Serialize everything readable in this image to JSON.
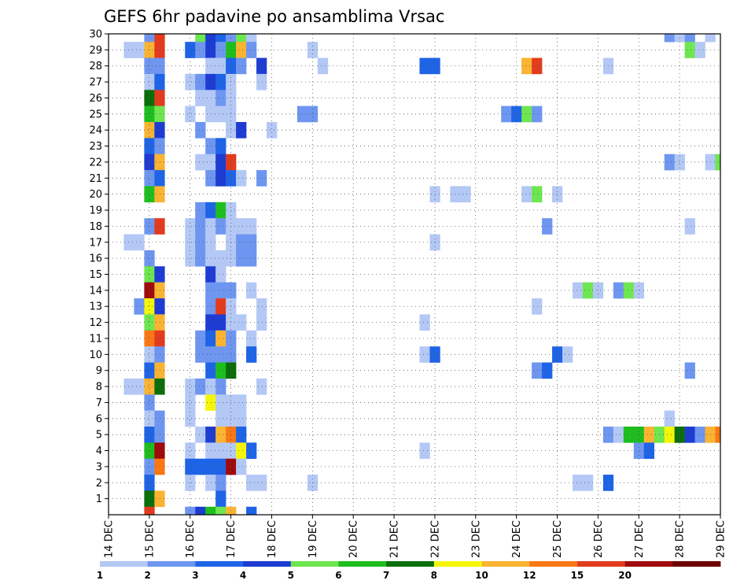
{
  "chart_data": {
    "type": "heatmap",
    "title": "GEFS 6hr padavine po ansamblima Vrsac",
    "xlabel": "",
    "ylabel": "",
    "x_unit": "6-hour step (index 0 = 14 DEC 00Z)",
    "x_tick_labels": [
      "14 DEC",
      "15 DEC",
      "16 DEC",
      "17 DEC",
      "18 DEC",
      "19 DEC",
      "20 DEC",
      "21 DEC",
      "22 DEC",
      "23 DEC",
      "24 DEC",
      "25 DEC",
      "26 DEC",
      "27 DEC",
      "28 DEC",
      "29 DEC"
    ],
    "xlim": [
      0,
      60
    ],
    "y_ticks": [
      1,
      2,
      3,
      4,
      5,
      6,
      7,
      8,
      9,
      10,
      11,
      12,
      13,
      14,
      15,
      16,
      17,
      18,
      19,
      20,
      21,
      22,
      23,
      24,
      25,
      26,
      27,
      28,
      29,
      30
    ],
    "ylim": [
      0,
      30
    ],
    "grid": true,
    "legend": "colorbar-bottom",
    "colorbar": {
      "labels": [
        "1",
        "2",
        "3",
        "4",
        "5",
        "6",
        "7",
        "8",
        "10",
        "12",
        "15",
        "20"
      ],
      "colors": [
        "#b4c8f5",
        "#6e96f0",
        "#1e64e6",
        "#1e3cd2",
        "#6ee650",
        "#1ebe1e",
        "#0a6e0a",
        "#f5f50a",
        "#fab432",
        "#fa7814",
        "#e13c1e",
        "#a00a0a",
        "#6e0000"
      ]
    },
    "cells": [
      [
        30,
        4,
        2
      ],
      [
        30,
        5,
        11
      ],
      [
        30,
        9,
        5
      ],
      [
        30,
        10,
        4
      ],
      [
        30,
        11,
        3
      ],
      [
        30,
        12,
        2
      ],
      [
        30,
        13,
        5
      ],
      [
        30,
        14,
        1
      ],
      [
        30,
        55,
        2
      ],
      [
        30,
        56,
        1
      ],
      [
        30,
        57,
        2
      ],
      [
        30,
        59,
        1
      ],
      [
        29,
        2,
        1
      ],
      [
        29,
        3,
        1
      ],
      [
        29,
        4,
        9
      ],
      [
        29,
        5,
        11
      ],
      [
        29,
        8,
        3
      ],
      [
        29,
        9,
        2
      ],
      [
        29,
        10,
        4
      ],
      [
        29,
        11,
        2
      ],
      [
        29,
        12,
        6
      ],
      [
        29,
        13,
        9
      ],
      [
        29,
        14,
        2
      ],
      [
        29,
        20,
        1
      ],
      [
        29,
        57,
        5
      ],
      [
        29,
        58,
        1
      ],
      [
        28,
        4,
        2
      ],
      [
        28,
        5,
        2
      ],
      [
        28,
        10,
        1
      ],
      [
        28,
        11,
        1
      ],
      [
        28,
        12,
        3
      ],
      [
        28,
        13,
        2
      ],
      [
        28,
        15,
        4
      ],
      [
        28,
        21,
        1
      ],
      [
        28,
        31,
        3
      ],
      [
        28,
        32,
        3
      ],
      [
        28,
        41,
        9
      ],
      [
        28,
        42,
        11
      ],
      [
        28,
        49,
        1
      ],
      [
        27,
        4,
        1
      ],
      [
        27,
        5,
        3
      ],
      [
        27,
        8,
        1
      ],
      [
        27,
        9,
        2
      ],
      [
        27,
        10,
        4
      ],
      [
        27,
        11,
        3
      ],
      [
        27,
        12,
        1
      ],
      [
        27,
        15,
        1
      ],
      [
        26,
        4,
        7
      ],
      [
        26,
        5,
        11
      ],
      [
        26,
        9,
        1
      ],
      [
        26,
        10,
        1
      ],
      [
        26,
        11,
        2
      ],
      [
        26,
        12,
        1
      ],
      [
        25,
        4,
        6
      ],
      [
        25,
        5,
        5
      ],
      [
        25,
        8,
        1
      ],
      [
        25,
        10,
        1
      ],
      [
        25,
        11,
        1
      ],
      [
        25,
        12,
        1
      ],
      [
        25,
        19,
        2
      ],
      [
        25,
        20,
        2
      ],
      [
        25,
        39,
        2
      ],
      [
        25,
        40,
        3
      ],
      [
        25,
        41,
        5
      ],
      [
        25,
        42,
        2
      ],
      [
        24,
        4,
        9
      ],
      [
        24,
        5,
        4
      ],
      [
        24,
        9,
        2
      ],
      [
        24,
        12,
        1
      ],
      [
        24,
        13,
        4
      ],
      [
        24,
        16,
        1
      ],
      [
        23,
        4,
        3
      ],
      [
        23,
        5,
        2
      ],
      [
        23,
        10,
        2
      ],
      [
        23,
        11,
        3
      ],
      [
        22,
        4,
        4
      ],
      [
        22,
        5,
        9
      ],
      [
        22,
        9,
        1
      ],
      [
        22,
        10,
        1
      ],
      [
        22,
        11,
        4
      ],
      [
        22,
        12,
        11
      ],
      [
        22,
        55,
        2
      ],
      [
        22,
        56,
        1
      ],
      [
        22,
        59,
        1
      ],
      [
        22,
        60,
        5
      ],
      [
        21,
        4,
        2
      ],
      [
        21,
        5,
        3
      ],
      [
        21,
        10,
        2
      ],
      [
        21,
        11,
        4
      ],
      [
        21,
        12,
        3
      ],
      [
        21,
        13,
        1
      ],
      [
        21,
        15,
        2
      ],
      [
        20,
        4,
        6
      ],
      [
        20,
        5,
        9
      ],
      [
        20,
        32,
        1
      ],
      [
        20,
        34,
        1
      ],
      [
        20,
        35,
        1
      ],
      [
        20,
        41,
        1
      ],
      [
        20,
        42,
        5
      ],
      [
        20,
        44,
        1
      ],
      [
        19,
        9,
        2
      ],
      [
        19,
        10,
        3
      ],
      [
        19,
        11,
        6
      ],
      [
        19,
        12,
        1
      ],
      [
        18,
        4,
        2
      ],
      [
        18,
        5,
        11
      ],
      [
        18,
        8,
        1
      ],
      [
        18,
        9,
        2
      ],
      [
        18,
        10,
        1
      ],
      [
        18,
        11,
        2
      ],
      [
        18,
        12,
        1
      ],
      [
        18,
        13,
        1
      ],
      [
        18,
        14,
        1
      ],
      [
        18,
        43,
        2
      ],
      [
        18,
        57,
        1
      ],
      [
        17,
        2,
        1
      ],
      [
        17,
        3,
        1
      ],
      [
        17,
        8,
        1
      ],
      [
        17,
        9,
        2
      ],
      [
        17,
        10,
        1
      ],
      [
        17,
        12,
        1
      ],
      [
        17,
        13,
        2
      ],
      [
        17,
        14,
        2
      ],
      [
        17,
        32,
        1
      ],
      [
        16,
        4,
        2
      ],
      [
        16,
        8,
        1
      ],
      [
        16,
        9,
        2
      ],
      [
        16,
        10,
        1
      ],
      [
        16,
        11,
        1
      ],
      [
        16,
        12,
        1
      ],
      [
        16,
        13,
        2
      ],
      [
        16,
        14,
        2
      ],
      [
        15,
        4,
        5
      ],
      [
        15,
        5,
        4
      ],
      [
        15,
        10,
        4
      ],
      [
        15,
        11,
        1
      ],
      [
        14,
        4,
        12
      ],
      [
        14,
        5,
        9
      ],
      [
        14,
        10,
        2
      ],
      [
        14,
        11,
        2
      ],
      [
        14,
        12,
        2
      ],
      [
        14,
        14,
        1
      ],
      [
        14,
        46,
        1
      ],
      [
        14,
        47,
        5
      ],
      [
        14,
        48,
        1
      ],
      [
        14,
        50,
        2
      ],
      [
        14,
        51,
        5
      ],
      [
        14,
        52,
        1
      ],
      [
        13,
        3,
        2
      ],
      [
        13,
        4,
        8
      ],
      [
        13,
        5,
        4
      ],
      [
        13,
        10,
        2
      ],
      [
        13,
        11,
        11
      ],
      [
        13,
        12,
        1
      ],
      [
        13,
        15,
        1
      ],
      [
        13,
        42,
        1
      ],
      [
        12,
        4,
        5
      ],
      [
        12,
        5,
        9
      ],
      [
        12,
        10,
        4
      ],
      [
        12,
        11,
        4
      ],
      [
        12,
        12,
        1
      ],
      [
        12,
        13,
        1
      ],
      [
        12,
        15,
        1
      ],
      [
        12,
        31,
        1
      ],
      [
        11,
        4,
        10
      ],
      [
        11,
        5,
        11
      ],
      [
        11,
        9,
        2
      ],
      [
        11,
        10,
        3
      ],
      [
        11,
        11,
        9
      ],
      [
        11,
        12,
        2
      ],
      [
        11,
        14,
        1
      ],
      [
        10,
        4,
        1
      ],
      [
        10,
        5,
        2
      ],
      [
        10,
        9,
        2
      ],
      [
        10,
        10,
        2
      ],
      [
        10,
        11,
        2
      ],
      [
        10,
        12,
        2
      ],
      [
        10,
        14,
        3
      ],
      [
        10,
        31,
        1
      ],
      [
        10,
        32,
        3
      ],
      [
        10,
        44,
        3
      ],
      [
        10,
        45,
        1
      ],
      [
        9,
        4,
        3
      ],
      [
        9,
        5,
        9
      ],
      [
        9,
        10,
        3
      ],
      [
        9,
        11,
        6
      ],
      [
        9,
        12,
        7
      ],
      [
        9,
        42,
        2
      ],
      [
        9,
        43,
        3
      ],
      [
        9,
        57,
        2
      ],
      [
        8,
        2,
        1
      ],
      [
        8,
        3,
        1
      ],
      [
        8,
        4,
        9
      ],
      [
        8,
        5,
        7
      ],
      [
        8,
        8,
        1
      ],
      [
        8,
        9,
        2
      ],
      [
        8,
        10,
        1
      ],
      [
        8,
        11,
        2
      ],
      [
        8,
        15,
        1
      ],
      [
        7,
        4,
        2
      ],
      [
        7,
        8,
        1
      ],
      [
        7,
        10,
        8
      ],
      [
        7,
        11,
        1
      ],
      [
        7,
        12,
        1
      ],
      [
        7,
        13,
        1
      ],
      [
        6,
        4,
        1
      ],
      [
        6,
        5,
        2
      ],
      [
        6,
        8,
        1
      ],
      [
        6,
        11,
        1
      ],
      [
        6,
        12,
        1
      ],
      [
        6,
        13,
        1
      ],
      [
        6,
        55,
        1
      ],
      [
        5,
        4,
        3
      ],
      [
        5,
        5,
        2
      ],
      [
        5,
        9,
        1
      ],
      [
        5,
        10,
        4
      ],
      [
        5,
        11,
        9
      ],
      [
        5,
        12,
        10
      ],
      [
        5,
        13,
        3
      ],
      [
        5,
        49,
        2
      ],
      [
        5,
        50,
        1
      ],
      [
        5,
        51,
        6
      ],
      [
        5,
        52,
        6
      ],
      [
        5,
        53,
        9
      ],
      [
        5,
        54,
        5
      ],
      [
        5,
        55,
        8
      ],
      [
        5,
        56,
        7
      ],
      [
        5,
        57,
        4
      ],
      [
        5,
        58,
        2
      ],
      [
        5,
        59,
        9
      ],
      [
        5,
        60,
        10
      ],
      [
        4,
        4,
        6
      ],
      [
        4,
        5,
        12
      ],
      [
        4,
        8,
        1
      ],
      [
        4,
        10,
        1
      ],
      [
        4,
        11,
        1
      ],
      [
        4,
        12,
        1
      ],
      [
        4,
        13,
        8
      ],
      [
        4,
        14,
        3
      ],
      [
        4,
        31,
        1
      ],
      [
        4,
        52,
        2
      ],
      [
        4,
        53,
        3
      ],
      [
        3,
        4,
        2
      ],
      [
        3,
        5,
        10
      ],
      [
        3,
        8,
        3
      ],
      [
        3,
        9,
        3
      ],
      [
        3,
        10,
        3
      ],
      [
        3,
        11,
        3
      ],
      [
        3,
        12,
        12
      ],
      [
        3,
        13,
        1
      ],
      [
        2,
        4,
        3
      ],
      [
        2,
        8,
        1
      ],
      [
        2,
        10,
        1
      ],
      [
        2,
        11,
        2
      ],
      [
        2,
        14,
        1
      ],
      [
        2,
        15,
        1
      ],
      [
        2,
        20,
        1
      ],
      [
        2,
        46,
        1
      ],
      [
        2,
        47,
        1
      ],
      [
        2,
        49,
        3
      ],
      [
        1,
        4,
        7
      ],
      [
        1,
        5,
        9
      ],
      [
        1,
        11,
        3
      ],
      [
        0,
        4,
        11
      ],
      [
        0,
        8,
        2
      ],
      [
        0,
        9,
        4
      ],
      [
        0,
        10,
        6
      ],
      [
        0,
        11,
        5
      ],
      [
        0,
        12,
        9
      ],
      [
        0,
        14,
        3
      ]
    ]
  }
}
